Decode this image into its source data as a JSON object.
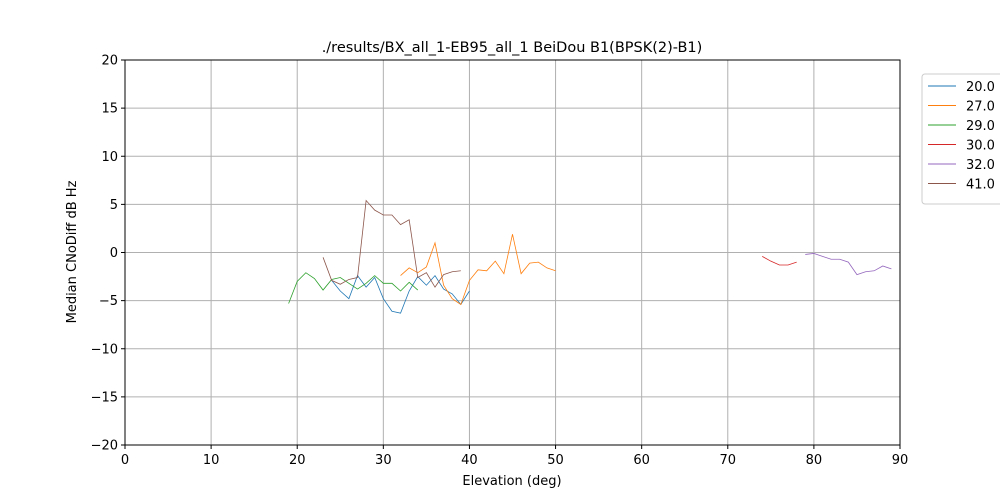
{
  "chart_data": {
    "type": "line",
    "title": "./results/BX_all_1-EB95_all_1 BeiDou B1(BPSK(2)-B1)",
    "xlabel": "Elevation (deg)",
    "ylabel": "Median CNoDiff dB Hz",
    "xlim": [
      0,
      90
    ],
    "ylim": [
      -20,
      20
    ],
    "xticks": [
      0,
      10,
      20,
      30,
      40,
      50,
      60,
      70,
      80,
      90
    ],
    "yticks": [
      -20,
      -15,
      -10,
      -5,
      0,
      5,
      10,
      15,
      20
    ],
    "ytick_labels": [
      "−20",
      "−15",
      "−10",
      "−5",
      "0",
      "5",
      "10",
      "15",
      "20"
    ],
    "grid": true,
    "legend_placement": "outside-right-top",
    "series": [
      {
        "name": "20.0",
        "color": "#1f77b4",
        "x": [
          24,
          25,
          26,
          27,
          28,
          29,
          30,
          31,
          32,
          33,
          34,
          35,
          36,
          37,
          38,
          39,
          40
        ],
        "y": [
          -2.9,
          -4.0,
          -4.8,
          -2.4,
          -3.6,
          -2.6,
          -4.8,
          -6.1,
          -6.3,
          -4.0,
          -2.5,
          -3.4,
          -2.4,
          -3.8,
          -4.3,
          -5.4,
          -4.0
        ]
      },
      {
        "name": "27.0",
        "color": "#ff7f0e",
        "x": [
          32,
          33,
          34,
          35,
          36,
          37,
          38,
          39,
          40,
          41,
          42,
          43,
          44,
          45,
          46,
          47,
          48,
          49,
          50
        ],
        "y": [
          -2.4,
          -1.6,
          -2.1,
          -1.5,
          1.0,
          -3.4,
          -4.8,
          -5.4,
          -2.9,
          -1.8,
          -1.9,
          -0.9,
          -2.2,
          1.9,
          -2.2,
          -1.1,
          -1.0,
          -1.6,
          -1.9
        ]
      },
      {
        "name": "29.0",
        "color": "#2ca02c",
        "x": [
          19,
          20,
          21,
          22,
          23,
          24,
          25,
          26,
          27,
          28,
          29,
          30,
          31,
          32,
          33,
          34
        ],
        "y": [
          -5.3,
          -3.0,
          -2.1,
          -2.7,
          -3.9,
          -2.8,
          -2.6,
          -3.2,
          -3.8,
          -3.2,
          -2.4,
          -3.2,
          -3.2,
          -4.0,
          -3.1,
          -3.9
        ]
      },
      {
        "name": "30.0",
        "color": "#d62728",
        "x": [
          74,
          75,
          76,
          77,
          78
        ],
        "y": [
          -0.4,
          -0.9,
          -1.3,
          -1.3,
          -1.0
        ]
      },
      {
        "name": "32.0",
        "color": "#9467bd",
        "x": [
          79,
          80,
          81,
          82,
          83,
          84,
          85,
          86,
          87,
          88,
          89
        ],
        "y": [
          -0.2,
          -0.1,
          -0.4,
          -0.7,
          -0.7,
          -1.0,
          -2.3,
          -2.0,
          -1.9,
          -1.4,
          -1.7
        ]
      },
      {
        "name": "41.0",
        "color": "#8c564b",
        "x": [
          23,
          24,
          25,
          26,
          27,
          28,
          29,
          30,
          31,
          32,
          33,
          34,
          35,
          36,
          37,
          38,
          39
        ],
        "y": [
          -0.5,
          -2.9,
          -3.3,
          -2.8,
          -2.6,
          5.4,
          4.4,
          3.9,
          3.9,
          2.9,
          3.4,
          -2.6,
          -2.1,
          -3.6,
          -2.3,
          -2.0,
          -1.9
        ]
      }
    ]
  }
}
